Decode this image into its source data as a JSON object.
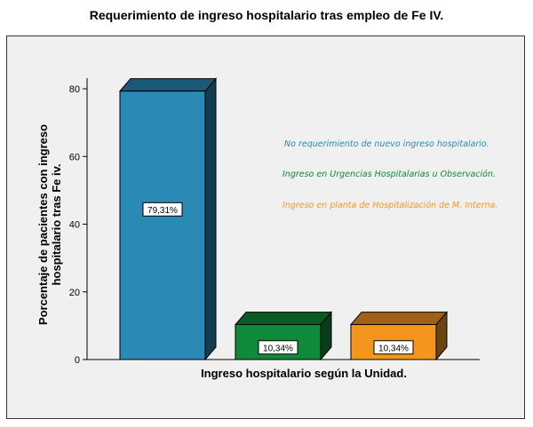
{
  "chart_data": {
    "type": "bar",
    "title": "Requerimiento de ingreso hospitalario tras empleo de Fe IV.",
    "xlabel": "Ingreso hospitalario según la Unidad.",
    "ylabel": "Porcentaje de pacientes con ingreso hospitalario tras Fe iv.",
    "ylim": [
      0,
      80
    ],
    "yticks": [
      "0",
      "20",
      "40",
      "60",
      "80"
    ],
    "grid": false,
    "legend_position": "right",
    "bars": [
      {
        "name": "No requerimiento de nuevo ingreso hospitalario.",
        "value": 79.31,
        "label": "79,31%",
        "color": "#2a89b5"
      },
      {
        "name": "Ingreso en Urgencias Hospitalarias u Observación.",
        "value": 10.34,
        "label": "10,34%",
        "color": "#0f8a3a"
      },
      {
        "name": "Ingreso en planta de Hospitalización de M. Interna.",
        "value": 10.34,
        "label": "10,34%",
        "color": "#f4961e"
      }
    ]
  }
}
